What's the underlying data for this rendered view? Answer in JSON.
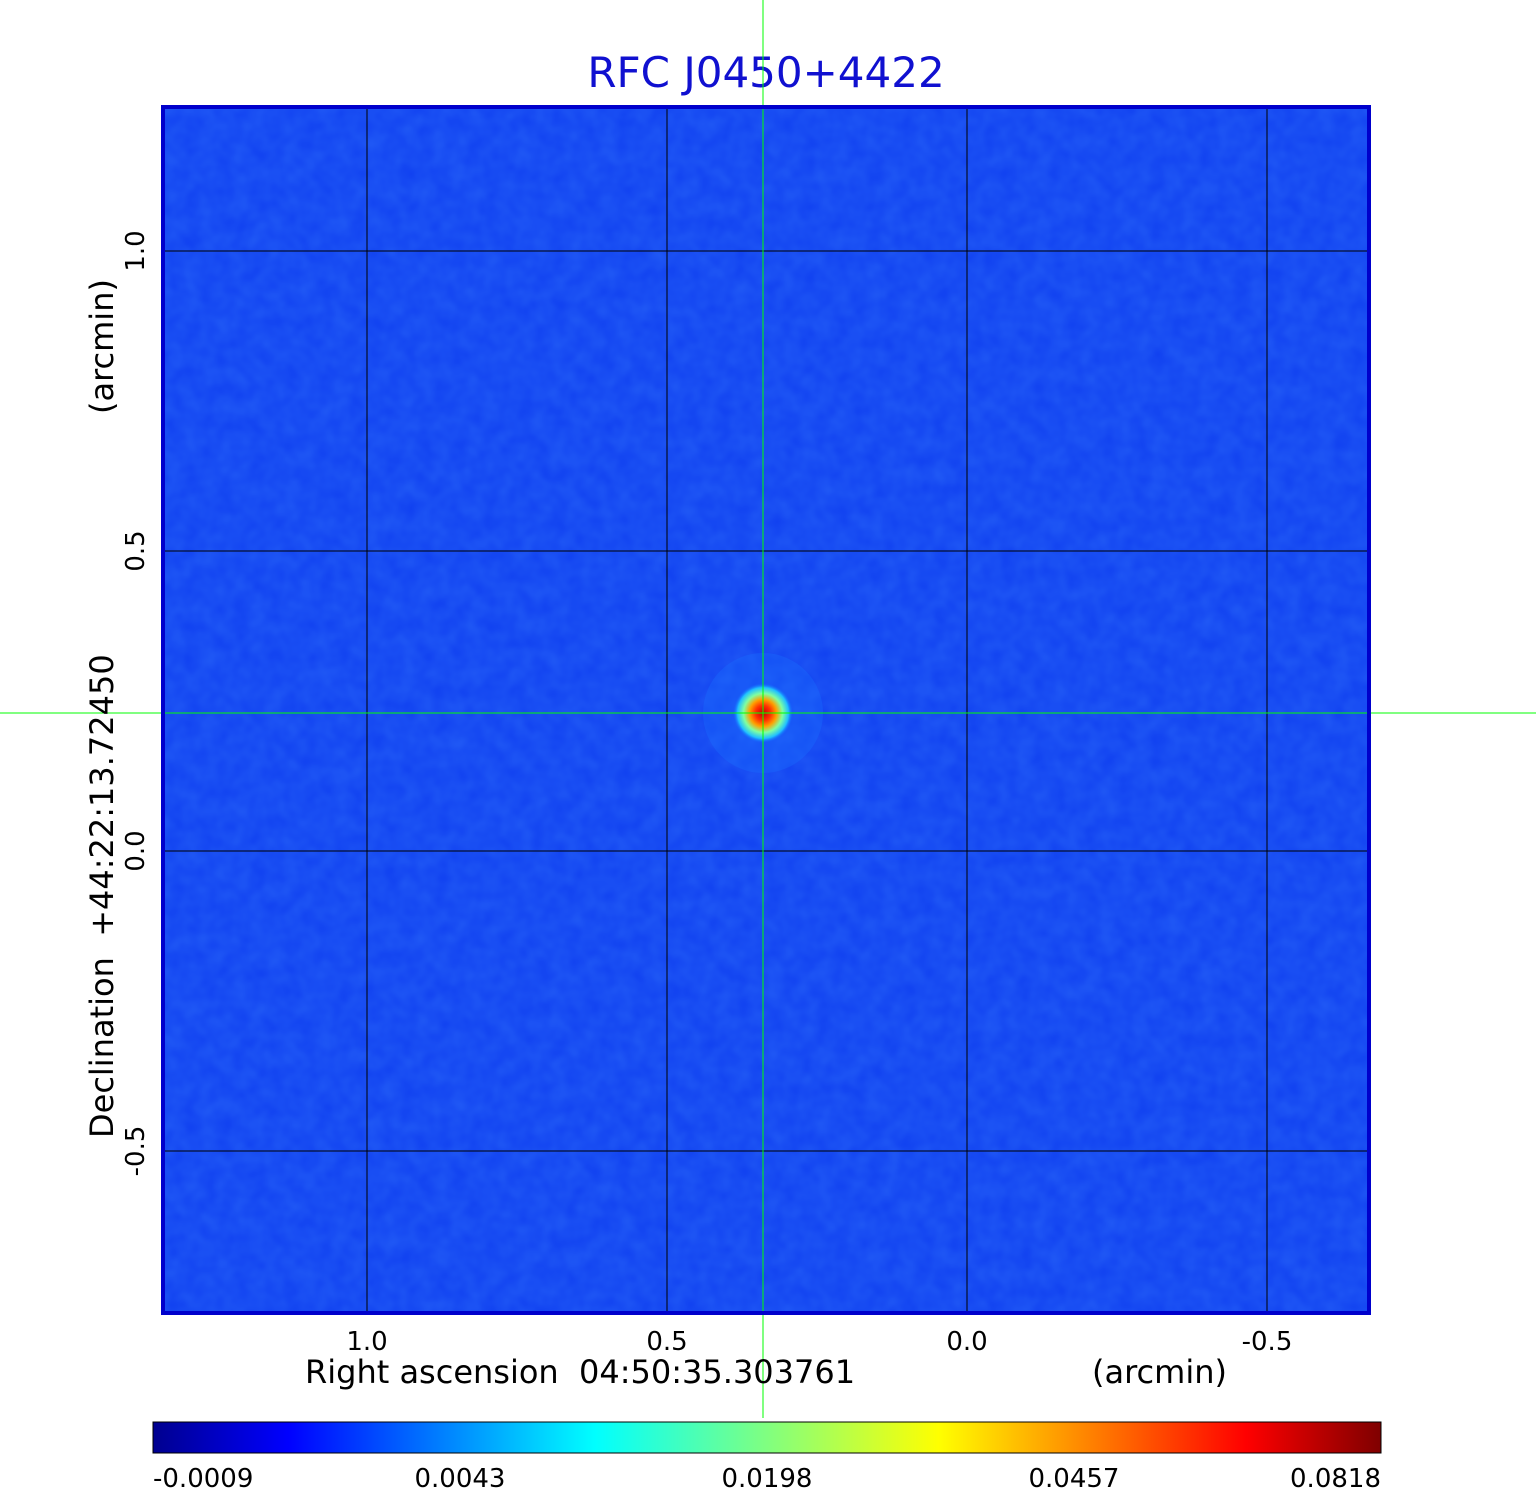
{
  "chart_data": {
    "type": "heatmap",
    "title": "RFC J0450+4422",
    "xlabel": "Right ascension  04:50:35.303761",
    "xunit": "(arcmin)",
    "ylabel": "Declination  +44:22:13.72450",
    "yunit": "(arcmin)",
    "xlim": [
      1.34,
      -0.67
    ],
    "ylim": [
      -0.77,
      1.24
    ],
    "x_ticks": [
      1.0,
      0.5,
      0.0,
      -0.5
    ],
    "x_tick_labels": [
      "1.0",
      "0.5",
      "0.0",
      "-0.5"
    ],
    "y_ticks": [
      1.0,
      0.5,
      0.0,
      -0.5
    ],
    "y_tick_labels": [
      "1.0",
      "0.5",
      "0.0",
      "-0.5"
    ],
    "grid": true,
    "crosshair": {
      "x": 0.34,
      "y": 0.23,
      "color": "#00ff00"
    },
    "source": {
      "x": 0.34,
      "y": 0.23,
      "peak": 0.0818
    },
    "colorbar": {
      "min": -0.0009,
      "max": 0.0818,
      "tick_labels": [
        "-0.0009",
        "0.0043",
        "0.0198",
        "0.0457",
        "0.0818"
      ],
      "colormap": "jet",
      "colors": [
        "#00008f",
        "#0000ff",
        "#00ffff",
        "#ffff00",
        "#ff0000",
        "#7f0000"
      ]
    },
    "colors": {
      "title": "#1010d0",
      "frame": "#0000cc",
      "background_map": "#1040f0",
      "grid": "#000000"
    }
  }
}
